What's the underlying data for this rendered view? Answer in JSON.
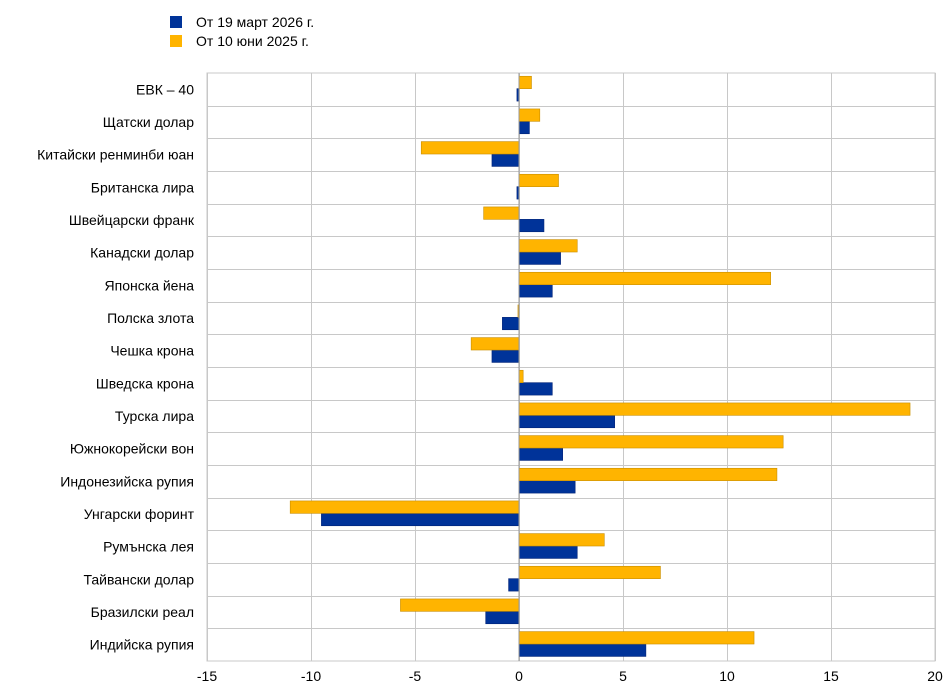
{
  "colors": {
    "series_0": "#003399",
    "series_1": "#ffb400",
    "grid": "#c8c8c8",
    "axis": "#999999"
  },
  "chart_data": {
    "type": "bar",
    "orientation": "horizontal",
    "categories": [
      "ЕВК – 40",
      "Щатски долар",
      "Китайски ренминби юан",
      "Британска лира",
      "Швейцарски франк",
      "Канадски долар",
      "Японска йена",
      "Полска злота",
      "Чешка крона",
      "Шведска крона",
      "Турска лира",
      "Южнокорейски вон",
      "Индонезийска рупия",
      "Унгарски форинт",
      "Румънска лея",
      "Тайвански долар",
      "Бразилски реал",
      "Индийска рупия"
    ],
    "series": [
      {
        "name": "От 19 март 2026 г.",
        "values": [
          -0.1,
          0.5,
          -1.3,
          -0.1,
          1.2,
          2.0,
          1.6,
          -0.8,
          -1.3,
          1.6,
          4.6,
          2.1,
          2.7,
          -9.5,
          2.8,
          -0.5,
          -1.6,
          6.1
        ]
      },
      {
        "name": "От 10 юни 2025 г.",
        "values": [
          0.6,
          1.0,
          -4.7,
          1.9,
          -1.7,
          2.8,
          12.1,
          -0.05,
          -2.3,
          0.2,
          18.8,
          12.7,
          12.4,
          -11.0,
          4.1,
          6.8,
          -5.7,
          11.3
        ]
      }
    ],
    "xlim": [
      -15,
      20
    ],
    "xticks": [
      -15,
      -10,
      -5,
      0,
      5,
      10,
      15,
      20
    ],
    "grid": true,
    "legend_position": "top-left"
  }
}
